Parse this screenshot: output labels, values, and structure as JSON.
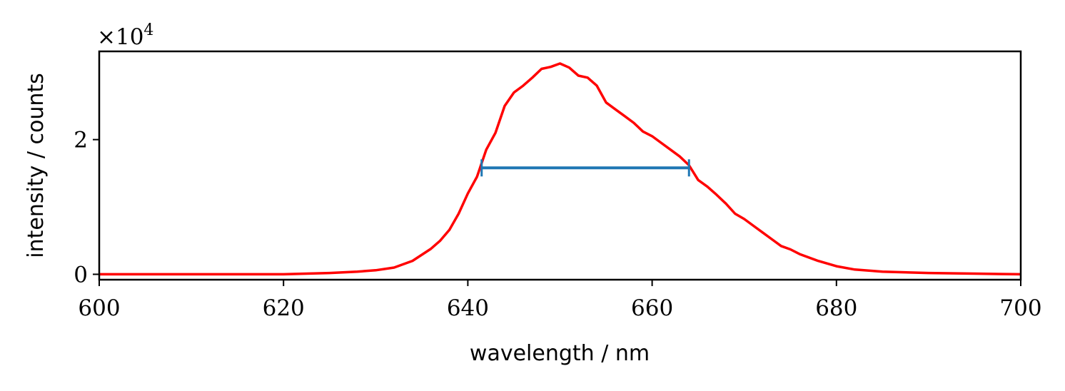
{
  "chart_data": {
    "type": "line",
    "title": "",
    "xlabel": "wavelength / nm",
    "ylabel": "intensity / counts",
    "y_multiplier": {
      "base": "×10",
      "exponent": "4"
    },
    "xlim": [
      600,
      700
    ],
    "ylim": [
      -0.08,
      3.31
    ],
    "y_scale_factor": 10000,
    "grid": false,
    "legend": "none",
    "x_ticks": [
      {
        "value": 600,
        "label": "600"
      },
      {
        "value": 620,
        "label": "620"
      },
      {
        "value": 640,
        "label": "640"
      },
      {
        "value": 660,
        "label": "660"
      },
      {
        "value": 680,
        "label": "680"
      },
      {
        "value": 700,
        "label": "700"
      }
    ],
    "y_ticks": [
      {
        "value": 0,
        "label": "0"
      },
      {
        "value": 2,
        "label": "2"
      }
    ],
    "series": [
      {
        "color": "#ff0000",
        "x": [
          600,
          610,
          620,
          625,
          628,
          630,
          632,
          634,
          636,
          637,
          638,
          639,
          640,
          641,
          642,
          643,
          644,
          645,
          646,
          647,
          648,
          649,
          650,
          651,
          652,
          653,
          654,
          655,
          656,
          657,
          658,
          659,
          660,
          661,
          662,
          663,
          664,
          665,
          666,
          667,
          668,
          669,
          670,
          671,
          672,
          673,
          674,
          675,
          676,
          678,
          680,
          682,
          685,
          690,
          695,
          700
        ],
        "y": [
          0.0,
          0.0,
          0.0,
          0.02,
          0.04,
          0.06,
          0.1,
          0.2,
          0.38,
          0.5,
          0.66,
          0.9,
          1.2,
          1.45,
          1.85,
          2.1,
          2.5,
          2.7,
          2.8,
          2.92,
          3.05,
          3.08,
          3.13,
          3.07,
          2.95,
          2.92,
          2.8,
          2.55,
          2.45,
          2.35,
          2.25,
          2.12,
          2.05,
          1.95,
          1.85,
          1.75,
          1.62,
          1.4,
          1.3,
          1.18,
          1.05,
          0.9,
          0.82,
          0.72,
          0.62,
          0.52,
          0.42,
          0.37,
          0.3,
          0.2,
          0.12,
          0.07,
          0.04,
          0.02,
          0.01,
          0.0
        ]
      }
    ],
    "errorbar": {
      "color": "#1f77b4",
      "y": 1.58,
      "xmin": 641.5,
      "xmax": 664
    }
  }
}
